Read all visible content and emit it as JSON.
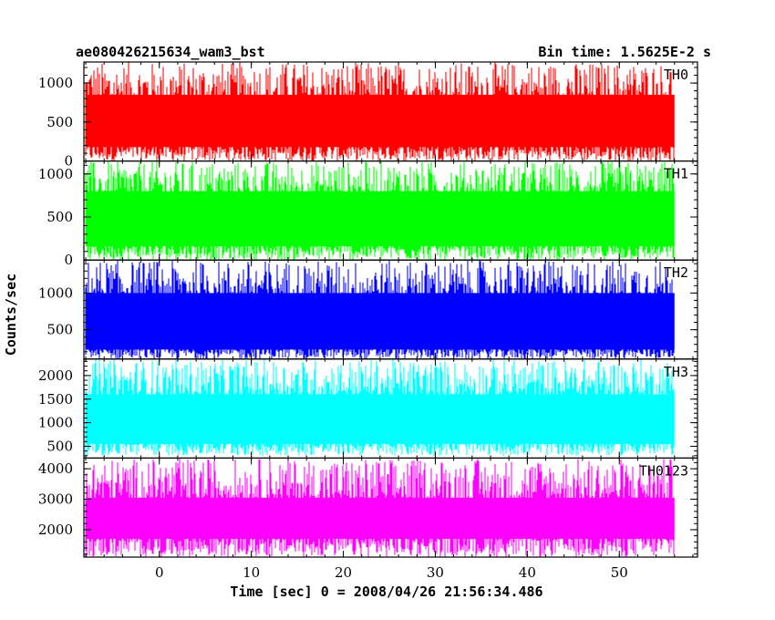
{
  "chart_data": {
    "type": "line",
    "title_left": "ae080426215634_wam3_bst",
    "title_right": "Bin time: 1.5625E-2 s",
    "xlabel": "Time [sec] 0 = 2008/04/26 21:56:34.486",
    "ylabel": "Counts/sec",
    "xlim": [
      -8.2,
      58.5
    ],
    "x_ticks": [
      0,
      10,
      20,
      30,
      40,
      50
    ],
    "x_tick_labels": [
      "0",
      "10",
      "20",
      "30",
      "40",
      "50"
    ],
    "data_x_range": [
      -8,
      56
    ],
    "bin_time_s": 0.015625,
    "series": [
      {
        "name": "TH0",
        "color": "#ff0000",
        "ylim": [
          0,
          1270
        ],
        "yticks": [
          0,
          500,
          1000
        ],
        "ytick_labels": [
          "0",
          "500",
          "1000"
        ],
        "typical_range": [
          180,
          850
        ],
        "min_range": [
          0,
          220
        ],
        "max_range": [
          720,
          1270
        ]
      },
      {
        "name": "TH1",
        "color": "#00ff00",
        "ylim": [
          0,
          1150
        ],
        "yticks": [
          0,
          500,
          1000
        ],
        "ytick_labels": [
          "0",
          "500",
          "1000"
        ],
        "typical_range": [
          160,
          800
        ],
        "min_range": [
          0,
          200
        ],
        "max_range": [
          700,
          1150
        ]
      },
      {
        "name": "TH2",
        "color": "#0000ff",
        "ylim": [
          100,
          1450
        ],
        "yticks": [
          500,
          1000
        ],
        "ytick_labels": [
          "500",
          "1000"
        ],
        "typical_range": [
          230,
          1000
        ],
        "min_range": [
          100,
          270
        ],
        "max_range": [
          900,
          1450
        ]
      },
      {
        "name": "TH3",
        "color": "#00ffff",
        "ylim": [
          250,
          2350
        ],
        "yticks": [
          500,
          1000,
          1500,
          2000
        ],
        "ytick_labels": [
          "500",
          "1000",
          "1500",
          "2000"
        ],
        "typical_range": [
          550,
          1600
        ],
        "min_range": [
          300,
          650
        ],
        "max_range": [
          1550,
          2350
        ]
      },
      {
        "name": "TH0123",
        "color": "#ff00ff",
        "ylim": [
          1100,
          4350
        ],
        "yticks": [
          2000,
          3000,
          4000
        ],
        "ytick_labels": [
          "2000",
          "3000",
          "4000"
        ],
        "typical_range": [
          1700,
          3050
        ],
        "min_range": [
          1100,
          1900
        ],
        "max_range": [
          2900,
          4350
        ]
      }
    ]
  }
}
